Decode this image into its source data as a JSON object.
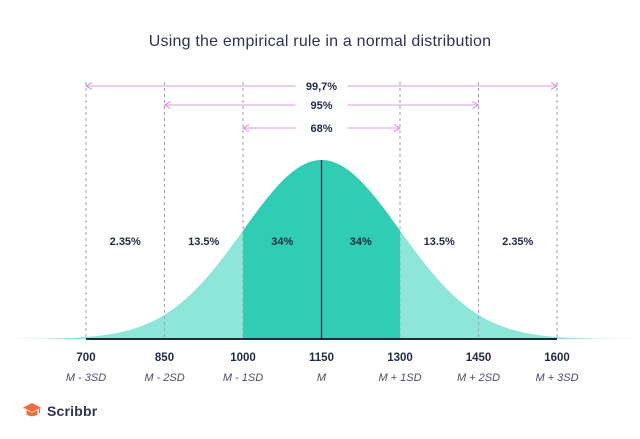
{
  "title": "Using the empirical rule in a normal distribution",
  "brand": {
    "name": "Scribbr",
    "icon": "graduation-cap-icon",
    "accent": "#f26b3a"
  },
  "colors": {
    "inner": "#2fcdb4",
    "outer": "#8de6d8",
    "curve_line": "#1f2a44",
    "range_arrows": "#d79be0",
    "dashes": "#9aa0b4",
    "text": "#1f2a44"
  },
  "chart_data": {
    "type": "area",
    "title": "Using the empirical rule in a normal distribution",
    "mean": 1150,
    "sd": 150,
    "x_ticks": [
      {
        "value": 700,
        "label": "700",
        "sublabel": "M - 3SD"
      },
      {
        "value": 850,
        "label": "850",
        "sublabel": "M - 2SD"
      },
      {
        "value": 1000,
        "label": "1000",
        "sublabel": "M - 1SD"
      },
      {
        "value": 1150,
        "label": "1150",
        "sublabel": "M"
      },
      {
        "value": 1300,
        "label": "1300",
        "sublabel": "M + 1SD"
      },
      {
        "value": 1450,
        "label": "1450",
        "sublabel": "M + 2SD"
      },
      {
        "value": 1600,
        "label": "1600",
        "sublabel": "M + 3SD"
      }
    ],
    "regions": [
      {
        "from": 700,
        "to": 850,
        "percent": "2.35%"
      },
      {
        "from": 850,
        "to": 1000,
        "percent": "13.5%"
      },
      {
        "from": 1000,
        "to": 1150,
        "percent": "34%"
      },
      {
        "from": 1150,
        "to": 1300,
        "percent": "34%"
      },
      {
        "from": 1300,
        "to": 1450,
        "percent": "13.5%"
      },
      {
        "from": 1450,
        "to": 1600,
        "percent": "2.35%"
      }
    ],
    "ranges": [
      {
        "label": "99,7%",
        "from": 700,
        "to": 1600
      },
      {
        "label": "95%",
        "from": 850,
        "to": 1450
      },
      {
        "label": "68%",
        "from": 1000,
        "to": 1300
      }
    ],
    "xlim": [
      700,
      1600
    ]
  }
}
